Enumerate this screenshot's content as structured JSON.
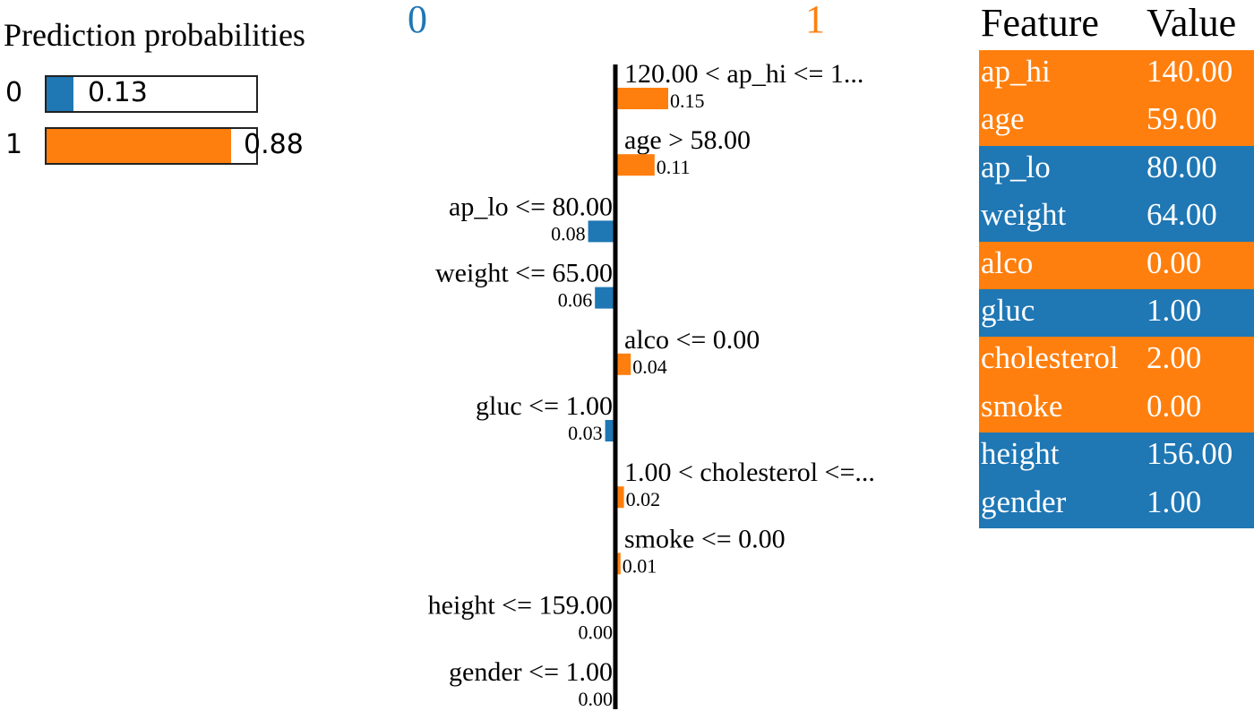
{
  "colors": {
    "class0": "#1f77b4",
    "class1": "#ff7f0e",
    "axis": "#000000"
  },
  "prediction": {
    "title": "Prediction probabilities",
    "rows": [
      {
        "label": "0",
        "value": 0.13,
        "display": "0.13",
        "color": "#1f77b4"
      },
      {
        "label": "1",
        "value": 0.88,
        "display": "0.88",
        "color": "#ff7f0e"
      }
    ]
  },
  "chart_data": {
    "type": "bar",
    "orientation": "horizontal",
    "class_labels": [
      "0",
      "1"
    ],
    "categories": [
      "120.00 < ap_hi <= 1...",
      "age > 58.00",
      "ap_lo <= 80.00",
      "weight <= 65.00",
      "alco <= 0.00",
      "gluc <= 1.00",
      "1.00 < cholesterol <=...",
      "smoke <= 0.00",
      "height <= 159.00",
      "gender <= 1.00"
    ],
    "values": [
      0.15,
      0.11,
      -0.08,
      -0.06,
      0.04,
      -0.03,
      0.02,
      0.01,
      0.0,
      0.0
    ],
    "value_labels": [
      "0.15",
      "0.11",
      "0.08",
      "0.06",
      "0.04",
      "0.03",
      "0.02",
      "0.01",
      "0.00",
      "0.00"
    ],
    "title": "",
    "xlabel": "",
    "ylabel": ""
  },
  "feature_table": {
    "headers": [
      "Feature",
      "Value"
    ],
    "rows": [
      {
        "feature": "ap_hi",
        "value": "140.00",
        "color": "#ff7f0e"
      },
      {
        "feature": "age",
        "value": "59.00",
        "color": "#ff7f0e"
      },
      {
        "feature": "ap_lo",
        "value": "80.00",
        "color": "#1f77b4"
      },
      {
        "feature": "weight",
        "value": "64.00",
        "color": "#1f77b4"
      },
      {
        "feature": "alco",
        "value": "0.00",
        "color": "#ff7f0e"
      },
      {
        "feature": "gluc",
        "value": "1.00",
        "color": "#1f77b4"
      },
      {
        "feature": "cholesterol",
        "value": "2.00",
        "color": "#ff7f0e"
      },
      {
        "feature": "smoke",
        "value": "0.00",
        "color": "#ff7f0e"
      },
      {
        "feature": "height",
        "value": "156.00",
        "color": "#1f77b4"
      },
      {
        "feature": "gender",
        "value": "1.00",
        "color": "#1f77b4"
      }
    ]
  }
}
